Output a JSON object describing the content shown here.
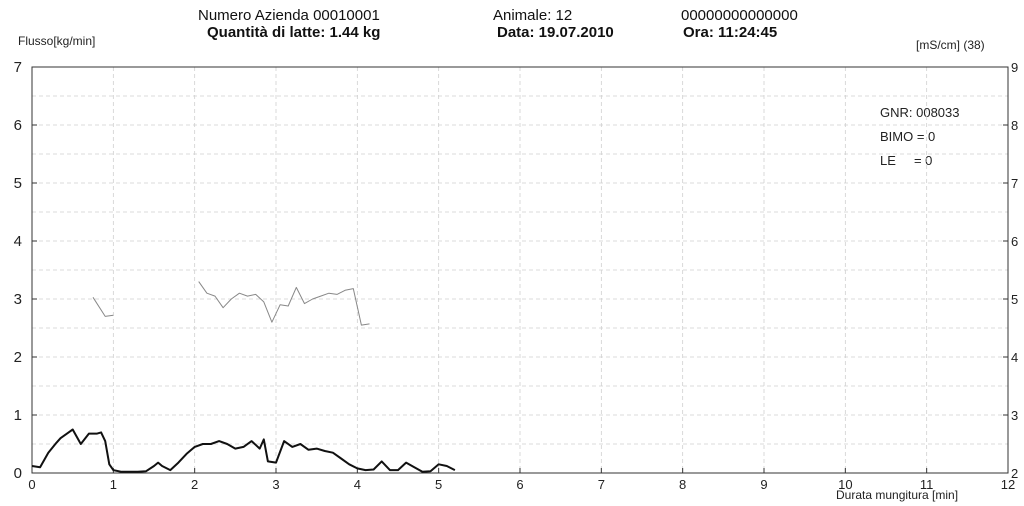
{
  "header": {
    "herd": "Numero Azienda 00010001",
    "animal": "Animale: 12",
    "id_code": "00000000000000",
    "quantity": "Quantità di latte: 1.44 kg",
    "date": "Data: 19.07.2010",
    "time": "Ora: 11:24:45"
  },
  "info": {
    "gnr": "GNR: 008033",
    "bimo": "BIMO = 0",
    "le": "LE     = 0"
  },
  "chart_data": {
    "type": "line",
    "title": "",
    "ylabel": "Flusso[kg/min]",
    "y2label": "[mS/cm] (38)",
    "xlabel": "Durata mungitura [min]",
    "xlim": [
      0,
      12
    ],
    "ylim": [
      0,
      7
    ],
    "y2lim": [
      2,
      9
    ],
    "x_ticks": [
      "0",
      "1",
      "2",
      "3",
      "4",
      "5",
      "6",
      "7",
      "8",
      "9",
      "10",
      "11",
      "12"
    ],
    "y_ticks": [
      "0",
      "1",
      "2",
      "3",
      "4",
      "5",
      "6",
      "7"
    ],
    "y2_ticks": [
      "2",
      "3",
      "4",
      "5",
      "6",
      "7",
      "8",
      "9"
    ],
    "grid": true,
    "series": [
      {
        "axis": "left",
        "color": "#111111",
        "x": [
          0,
          0.1,
          0.2,
          0.3,
          0.35,
          0.45,
          0.5,
          0.6,
          0.7,
          0.8,
          0.85,
          0.9,
          0.95,
          1.0,
          1.1,
          1.2,
          1.3,
          1.4,
          1.5,
          1.55,
          1.6,
          1.7,
          1.8,
          1.9,
          2.0,
          2.1,
          2.2,
          2.3,
          2.4,
          2.5,
          2.6,
          2.7,
          2.8,
          2.85,
          2.9,
          3.0,
          3.1,
          3.2,
          3.3,
          3.4,
          3.5,
          3.6,
          3.7,
          3.8,
          3.9,
          4.0,
          4.1,
          4.2,
          4.3,
          4.4,
          4.5,
          4.6,
          4.7,
          4.8,
          4.9,
          5.0,
          5.1,
          5.2
        ],
        "values": [
          0.12,
          0.1,
          0.35,
          0.52,
          0.6,
          0.7,
          0.75,
          0.5,
          0.68,
          0.68,
          0.7,
          0.55,
          0.15,
          0.05,
          0.02,
          0.02,
          0.02,
          0.03,
          0.12,
          0.18,
          0.12,
          0.05,
          0.18,
          0.33,
          0.45,
          0.5,
          0.5,
          0.55,
          0.5,
          0.42,
          0.45,
          0.55,
          0.42,
          0.58,
          0.2,
          0.18,
          0.55,
          0.45,
          0.5,
          0.4,
          0.42,
          0.38,
          0.35,
          0.25,
          0.15,
          0.08,
          0.05,
          0.06,
          0.2,
          0.05,
          0.05,
          0.18,
          0.1,
          0.02,
          0.03,
          0.15,
          0.12,
          0.05
        ]
      },
      {
        "axis": "right",
        "color": "#888888",
        "segments": [
          {
            "x": [
              0.75,
              0.9,
              1.0
            ],
            "values": [
              5.03,
              4.7,
              4.72
            ]
          },
          {
            "x": [
              2.05,
              2.15,
              2.25,
              2.35,
              2.45,
              2.55,
              2.65,
              2.75,
              2.85,
              2.95,
              3.05,
              3.15,
              3.25,
              3.35,
              3.45,
              3.55,
              3.65,
              3.75,
              3.85,
              3.95,
              4.05,
              4.15
            ],
            "values": [
              5.3,
              5.1,
              5.05,
              4.85,
              5.0,
              5.1,
              5.05,
              5.08,
              4.95,
              4.6,
              4.9,
              4.88,
              5.2,
              4.92,
              5.0,
              5.05,
              5.1,
              5.08,
              5.15,
              5.18,
              4.55,
              4.57
            ]
          }
        ]
      }
    ]
  }
}
